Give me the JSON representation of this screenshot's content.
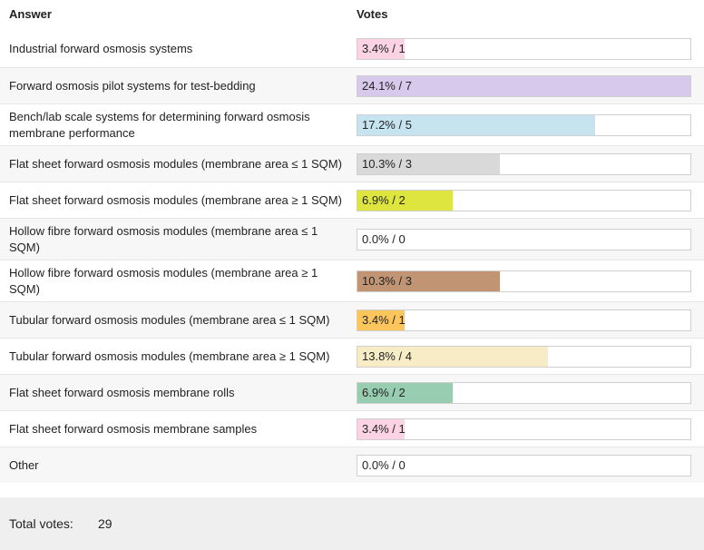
{
  "header": {
    "answer_label": "Answer",
    "votes_label": "Votes"
  },
  "chart_data": {
    "type": "bar",
    "orientation": "horizontal",
    "categories": [
      "Industrial forward osmosis systems",
      "Forward osmosis pilot systems for test-bedding",
      "Bench/lab scale systems for determining forward osmosis membrane performance",
      "Flat sheet forward osmosis modules (membrane area ≤ 1 SQM)",
      "Flat sheet forward osmosis modules (membrane area ≥ 1 SQM)",
      "Hollow fibre forward osmosis modules (membrane area ≤ 1 SQM)",
      "Hollow fibre forward osmosis modules (membrane area ≥ 1 SQM)",
      "Tubular forward osmosis modules (membrane area ≤ 1 SQM)",
      "Tubular forward osmosis modules (membrane area ≥ 1 SQM)",
      "Flat sheet forward osmosis membrane rolls",
      "Flat sheet forward osmosis membrane samples",
      "Other"
    ],
    "values": [
      1,
      7,
      5,
      3,
      2,
      0,
      3,
      1,
      4,
      2,
      1,
      0
    ],
    "percent_labels": [
      "3.4%",
      "24.1%",
      "17.2%",
      "10.3%",
      "6.9%",
      "0.0%",
      "10.3%",
      "3.4%",
      "13.8%",
      "6.9%",
      "3.4%",
      "0.0%"
    ],
    "colors": [
      "#fbd3e3",
      "#d7c9ec",
      "#c5e4f0",
      "#d9d9d9",
      "#dde53e",
      "#ffffff",
      "#c19474",
      "#fcc65d",
      "#f7ecc6",
      "#98cdb1",
      "#fbd3e3",
      "#ffffff"
    ],
    "max_value": 7
  },
  "footer": {
    "total_label": "Total votes:",
    "total_value": "29"
  }
}
